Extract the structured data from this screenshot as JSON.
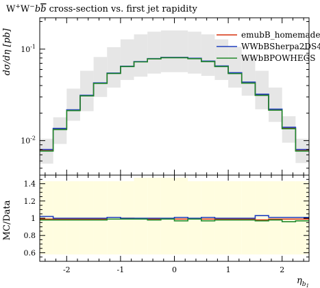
{
  "chart_data": [
    {
      "type": "line",
      "step": true,
      "title_main": "W",
      "title_sup1": "+",
      "title_mid": "W",
      "title_sup2": "−",
      "title_bb": "b",
      "title_bbar": "b",
      "title_rest": " cross-section vs. first jet rapidity",
      "ylabel": "dσ/dη [pb]",
      "yscale": "log",
      "ylim": [
        0.0042,
        0.22
      ],
      "xlim": [
        -2.5,
        2.5
      ],
      "ytick_labels": [
        "10^-2",
        "10^-1"
      ],
      "ytick_values": [
        0.01,
        0.1
      ],
      "x_edges": [
        -2.5,
        -2.25,
        -2.0,
        -1.75,
        -1.5,
        -1.25,
        -1.0,
        -0.75,
        -0.5,
        -0.25,
        0.0,
        0.25,
        0.5,
        0.75,
        1.0,
        1.25,
        1.5,
        1.75,
        2.0,
        2.25,
        2.5
      ],
      "band": {
        "lower": [
          0.0056,
          0.0092,
          0.0165,
          0.021,
          0.03,
          0.038,
          0.046,
          0.05,
          0.054,
          0.056,
          0.056,
          0.054,
          0.051,
          0.046,
          0.038,
          0.031,
          0.022,
          0.016,
          0.0095,
          0.0057
        ],
        "upper": [
          0.0105,
          0.018,
          0.037,
          0.058,
          0.082,
          0.105,
          0.128,
          0.145,
          0.155,
          0.16,
          0.16,
          0.155,
          0.145,
          0.128,
          0.106,
          0.083,
          0.058,
          0.038,
          0.0185,
          0.0105
        ],
        "color": "#e6e6e6"
      },
      "series": [
        {
          "name": "emubB_homemade",
          "color": "#d62e0a",
          "values": [
            0.0078,
            0.0134,
            0.0215,
            0.031,
            0.0425,
            0.0545,
            0.0648,
            0.0728,
            0.0785,
            0.0808,
            0.0808,
            0.079,
            0.0735,
            0.065,
            0.0545,
            0.043,
            0.0315,
            0.0218,
            0.0137,
            0.0078
          ]
        },
        {
          "name": "WWbBSherpa2DS4",
          "color": "#1f3fbf",
          "values": [
            0.008,
            0.0136,
            0.0217,
            0.0313,
            0.0428,
            0.0548,
            0.0651,
            0.0731,
            0.0788,
            0.0812,
            0.0812,
            0.0795,
            0.074,
            0.0655,
            0.0552,
            0.0436,
            0.0322,
            0.0221,
            0.014,
            0.008
          ]
        },
        {
          "name": "WWbBPOWHEGS",
          "color": "#22882a",
          "values": [
            0.0077,
            0.0132,
            0.0213,
            0.0308,
            0.0422,
            0.0542,
            0.0645,
            0.0725,
            0.0782,
            0.0805,
            0.0805,
            0.0786,
            0.073,
            0.0645,
            0.054,
            0.0425,
            0.0312,
            0.0215,
            0.0135,
            0.0077
          ]
        }
      ]
    },
    {
      "type": "line",
      "step": true,
      "ylabel": "MC/Data",
      "xlabel_main": "η",
      "xlabel_sub": "b",
      "xlabel_subsub": "1",
      "xlim": [
        -2.5,
        2.5
      ],
      "ylim": [
        0.5,
        1.5
      ],
      "xticks": [
        -2,
        -1,
        0,
        1,
        2
      ],
      "xtick_labels": [
        "-2",
        "-1",
        "0",
        "1",
        "2"
      ],
      "yticks": [
        0.6,
        0.8,
        1.0,
        1.2,
        1.4
      ],
      "ytick_labels": [
        "0.6",
        "0.8",
        "1",
        "1.2",
        "1.4"
      ],
      "x_edges": [
        -2.5,
        -2.25,
        -2.0,
        -1.75,
        -1.5,
        -1.25,
        -1.0,
        -0.75,
        -0.5,
        -0.25,
        0.0,
        0.25,
        0.5,
        0.75,
        1.0,
        1.25,
        1.5,
        1.75,
        2.0,
        2.25,
        2.5
      ],
      "band": {
        "lower": [
          0.58,
          0.58,
          0.58,
          0.58,
          0.58,
          0.58,
          0.58,
          0.58,
          0.58,
          0.58,
          0.58,
          0.58,
          0.58,
          0.58,
          0.58,
          0.58,
          0.58,
          0.58,
          0.58,
          0.58
        ],
        "upper": [
          1.43,
          1.43,
          1.43,
          1.43,
          1.43,
          1.43,
          1.43,
          1.47,
          1.47,
          1.47,
          1.47,
          1.43,
          1.43,
          1.43,
          1.43,
          1.43,
          1.43,
          1.43,
          1.43,
          1.43
        ],
        "color": "#fffde0"
      },
      "series": [
        {
          "name": "emubB_homemade",
          "color": "#d62e0a",
          "values": [
            0.99,
            0.99,
            0.99,
            0.99,
            0.99,
            0.99,
            1.0,
            0.99,
            0.99,
            0.99,
            0.99,
            0.99,
            0.99,
            0.99,
            0.99,
            0.99,
            0.98,
            0.99,
            0.99,
            0.99
          ]
        },
        {
          "name": "WWbBSherpa2DS4",
          "color": "#1f3fbf",
          "values": [
            1.02,
            1.0,
            1.0,
            1.0,
            1.0,
            1.01,
            1.0,
            1.0,
            1.0,
            1.0,
            1.01,
            1.0,
            1.01,
            1.0,
            1.0,
            1.0,
            1.03,
            1.01,
            1.01,
            1.01
          ]
        },
        {
          "name": "WWbBPOWHEGS",
          "color": "#22882a",
          "values": [
            0.98,
            0.98,
            0.98,
            0.98,
            0.98,
            0.99,
            0.99,
            0.99,
            0.98,
            0.99,
            0.97,
            0.99,
            0.97,
            0.98,
            0.98,
            0.98,
            0.97,
            0.98,
            0.96,
            0.97
          ]
        }
      ]
    }
  ]
}
